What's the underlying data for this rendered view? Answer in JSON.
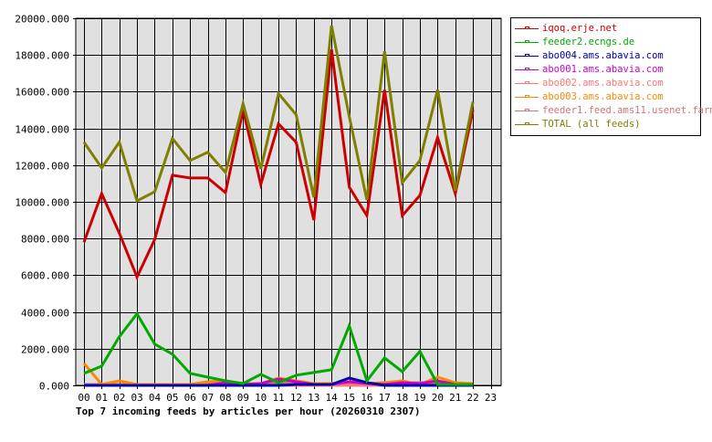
{
  "chart_data": {
    "type": "line",
    "title": "Top 7 incoming feeds by articles per hour (20260310 2307)",
    "xlabel": "",
    "ylabel": "",
    "ylim": [
      0,
      20000
    ],
    "grid": true,
    "legend_position": "right",
    "x": [
      "00",
      "01",
      "02",
      "03",
      "04",
      "05",
      "06",
      "07",
      "08",
      "09",
      "10",
      "11",
      "12",
      "13",
      "14",
      "15",
      "16",
      "17",
      "18",
      "19",
      "20",
      "21",
      "22",
      "23"
    ],
    "yticks": [
      "0.000",
      "2000.000",
      "4000.000",
      "6000.000",
      "8000.000",
      "10000.000",
      "12000.000",
      "14000.000",
      "16000.000",
      "18000.000",
      "20000.000"
    ],
    "series": [
      {
        "name": "iqoq.erje.net",
        "color": "#cc0000",
        "values": [
          7800,
          10450,
          8300,
          5900,
          7950,
          11450,
          11300,
          11300,
          10500,
          15000,
          10950,
          14250,
          13250,
          9000,
          18300,
          10800,
          9250,
          16100,
          9250,
          10350,
          13500,
          10450,
          15000
        ]
      },
      {
        "name": "feeder2.ecngs.de",
        "color": "#00aa00",
        "values": [
          650,
          1050,
          2650,
          3900,
          2250,
          1700,
          650,
          450,
          250,
          100,
          600,
          150,
          550,
          700,
          850,
          3250,
          250,
          1500,
          750,
          1850,
          50,
          50,
          50
        ]
      },
      {
        "name": "abo004.ams.abavia.com",
        "color": "#0000aa",
        "values": [
          0,
          0,
          0,
          0,
          0,
          0,
          0,
          0,
          0,
          0,
          0,
          0,
          50,
          50,
          50,
          400,
          150,
          0,
          0,
          0,
          0,
          0,
          0
        ]
      },
      {
        "name": "abo001.ams.abavia.com",
        "color": "#cc00cc",
        "values": [
          0,
          0,
          0,
          0,
          0,
          0,
          0,
          0,
          150,
          50,
          100,
          350,
          200,
          50,
          50,
          200,
          100,
          50,
          150,
          100,
          250,
          50,
          0
        ]
      },
      {
        "name": "abo002.ams.abavia.com",
        "color": "#ff7777",
        "values": [
          0,
          0,
          0,
          0,
          0,
          0,
          0,
          0,
          0,
          0,
          0,
          0,
          0,
          0,
          0,
          0,
          0,
          0,
          0,
          0,
          0,
          0,
          0
        ]
      },
      {
        "name": "abo003.ams.abavia.com",
        "color": "#ff8800",
        "values": [
          1200,
          50,
          250,
          50,
          50,
          50,
          50,
          200,
          250,
          100,
          100,
          400,
          250,
          100,
          100,
          200,
          100,
          150,
          250,
          50,
          450,
          150,
          100
        ]
      },
      {
        "name": "feeder1.feed.ams11.usenet.farm",
        "color": "#cc7777",
        "values": [
          50,
          50,
          50,
          50,
          50,
          50,
          50,
          100,
          150,
          100,
          100,
          150,
          100,
          100,
          100,
          150,
          100,
          150,
          150,
          150,
          150,
          100,
          50
        ]
      },
      {
        "name": "TOTAL (all feeds)",
        "color": "#7f7f00",
        "values": [
          13250,
          11850,
          13250,
          10050,
          10550,
          13450,
          12250,
          12700,
          11600,
          15350,
          11800,
          15900,
          14750,
          10250,
          19600,
          14650,
          10100,
          18200,
          11050,
          12250,
          16100,
          10600,
          15450
        ]
      }
    ]
  },
  "legend": {
    "items": [
      {
        "label": "iqoq.erje.net",
        "color": "#cc0000"
      },
      {
        "label": "feeder2.ecngs.de",
        "color": "#00aa00"
      },
      {
        "label": "abo004.ams.abavia.com",
        "color": "#0000aa"
      },
      {
        "label": "abo001.ams.abavia.com",
        "color": "#cc00cc"
      },
      {
        "label": "abo002.ams.abavia.com",
        "color": "#ff7777"
      },
      {
        "label": "abo003.ams.abavia.com",
        "color": "#ff8800"
      },
      {
        "label": "feeder1.feed.ams11.usenet.farm",
        "color": "#cc7777"
      },
      {
        "label": "TOTAL (all feeds)",
        "color": "#7f7f00"
      }
    ]
  },
  "colors": {
    "plot_background": "#e0e0e0",
    "grid": "#000000"
  }
}
